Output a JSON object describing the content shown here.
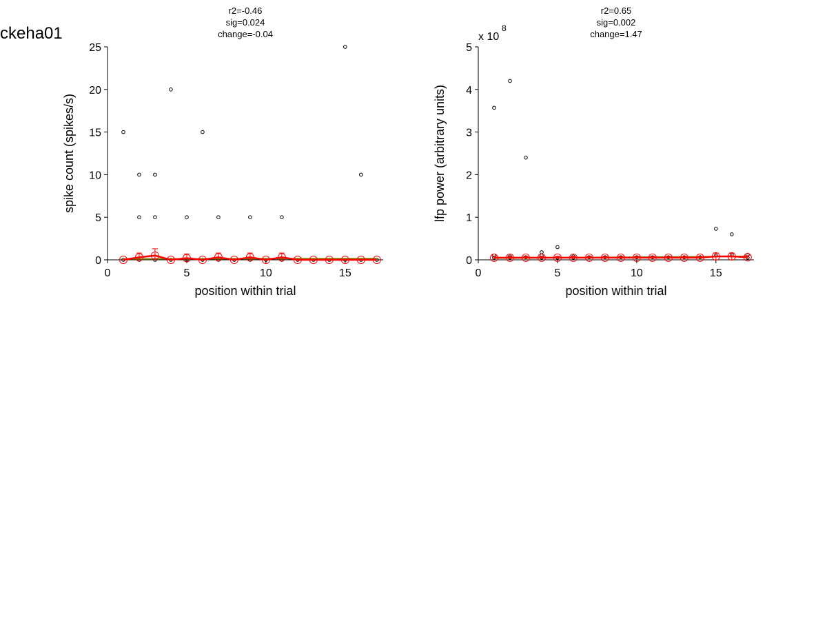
{
  "figure_title": "ckeha01",
  "colors": {
    "mean": "#ff0000",
    "fit": "#808000",
    "points": "#000000"
  },
  "chart_data": [
    {
      "type": "scatter",
      "stats": [
        "r2=-0.46",
        "sig=0.024",
        "change=-0.04"
      ],
      "xlabel": "position within trial",
      "ylabel": "spike count (spikes/s)",
      "xlim": [
        0,
        17.4
      ],
      "ylim": [
        0,
        25
      ],
      "xticks": [
        0,
        5,
        10,
        15
      ],
      "yticks": [
        0,
        5,
        10,
        15,
        20,
        25
      ],
      "exponent": null,
      "points": [
        [
          1,
          15
        ],
        [
          1,
          0
        ],
        [
          2,
          10
        ],
        [
          2,
          5
        ],
        [
          2,
          0
        ],
        [
          3,
          10
        ],
        [
          3,
          5
        ],
        [
          3,
          0
        ],
        [
          4,
          20
        ],
        [
          4,
          0
        ],
        [
          5,
          5
        ],
        [
          5,
          0
        ],
        [
          6,
          15
        ],
        [
          6,
          0
        ],
        [
          7,
          5
        ],
        [
          7,
          0
        ],
        [
          8,
          0
        ],
        [
          9,
          5
        ],
        [
          9,
          0
        ],
        [
          10,
          0
        ],
        [
          11,
          5
        ],
        [
          11,
          0
        ],
        [
          12,
          0
        ],
        [
          13,
          0
        ],
        [
          14,
          0
        ],
        [
          15,
          25
        ],
        [
          15,
          0
        ],
        [
          16,
          10
        ],
        [
          16,
          0
        ],
        [
          17,
          0
        ]
      ],
      "mean_x": [
        1,
        2,
        3,
        4,
        5,
        6,
        7,
        8,
        9,
        10,
        11,
        12,
        13,
        14,
        15,
        16,
        17
      ],
      "mean_y": [
        0,
        0.3,
        0.5,
        0,
        0.2,
        0,
        0.3,
        0,
        0.3,
        0,
        0.3,
        0,
        0,
        0,
        0,
        0,
        0
      ],
      "mean_err": [
        0,
        0.5,
        0.8,
        0,
        0.5,
        0,
        0.5,
        0,
        0.5,
        0,
        0.5,
        0,
        0,
        0,
        0,
        0,
        0
      ],
      "fit_line": [
        [
          1,
          0.1
        ],
        [
          17,
          0.15
        ]
      ]
    },
    {
      "type": "scatter",
      "stats": [
        "r2=0.65",
        "sig=0.002",
        "change=1.47"
      ],
      "xlabel": "position within trial",
      "ylabel": "lfp power (arbitrary units)",
      "xlim": [
        0,
        17.4
      ],
      "ylim": [
        0,
        5
      ],
      "xticks": [
        0,
        5,
        10,
        15
      ],
      "yticks": [
        0,
        1,
        2,
        3,
        4,
        5
      ],
      "exponent": {
        "base": "x 10",
        "power": "8"
      },
      "points": [
        [
          1,
          3.57
        ],
        [
          1,
          0.1
        ],
        [
          1,
          0.05
        ],
        [
          2,
          4.2
        ],
        [
          2,
          0.08
        ],
        [
          2,
          0.05
        ],
        [
          3,
          2.4
        ],
        [
          3,
          0.06
        ],
        [
          4,
          0.18
        ],
        [
          4,
          0.1
        ],
        [
          4,
          0.05
        ],
        [
          5,
          0.3
        ],
        [
          5,
          0.05
        ],
        [
          6,
          0.08
        ],
        [
          6,
          0.05
        ],
        [
          7,
          0.06
        ],
        [
          8,
          0.06
        ],
        [
          9,
          0.06
        ],
        [
          10,
          0.06
        ],
        [
          11,
          0.06
        ],
        [
          12,
          0.06
        ],
        [
          13,
          0.06
        ],
        [
          14,
          0.06
        ],
        [
          15,
          0.73
        ],
        [
          15,
          0.1
        ],
        [
          16,
          0.6
        ],
        [
          16,
          0.12
        ],
        [
          17,
          0.12
        ],
        [
          17,
          0.05
        ]
      ],
      "mean_x": [
        1,
        2,
        3,
        4,
        5,
        6,
        7,
        8,
        9,
        10,
        11,
        12,
        13,
        14,
        15,
        16,
        17
      ],
      "mean_y": [
        0.05,
        0.05,
        0.05,
        0.05,
        0.05,
        0.05,
        0.05,
        0.05,
        0.05,
        0.05,
        0.05,
        0.05,
        0.05,
        0.05,
        0.08,
        0.08,
        0.06
      ],
      "mean_err": [
        0.04,
        0.04,
        0.03,
        0.03,
        0.03,
        0.03,
        0.03,
        0.03,
        0.03,
        0.03,
        0.03,
        0.03,
        0.03,
        0.03,
        0.08,
        0.08,
        0.04
      ],
      "fit_line": [
        [
          1,
          0.04
        ],
        [
          17,
          0.08
        ]
      ]
    }
  ]
}
